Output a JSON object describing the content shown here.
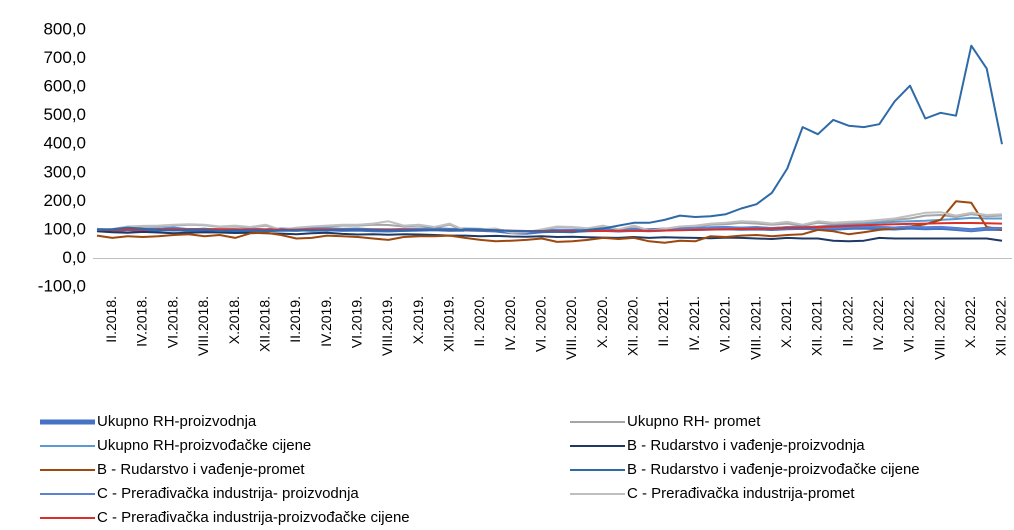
{
  "chart_data": {
    "type": "line",
    "categories": [
      null,
      "II.2018.",
      null,
      "IV.2018.",
      null,
      "VI.2018.",
      null,
      "VIII.2018.",
      null,
      "X.2018.",
      null,
      "XII.2018.",
      null,
      "II.2019.",
      null,
      "IV.2019.",
      null,
      "VI.2019.",
      null,
      "VIII.2019.",
      null,
      "X.2019.",
      null,
      "XII.2019.",
      null,
      "II. 2020.",
      null,
      "IV. 2020.",
      null,
      "VI. 2020.",
      null,
      "VIII. 2020.",
      null,
      "X. 2020.",
      null,
      "XII. 2020.",
      null,
      "II. 2021.",
      null,
      "IV. 2021.",
      null,
      "VI. 2021.",
      null,
      "VIII. 2021.",
      null,
      "X. 2021.",
      null,
      "XII. 2021.",
      null,
      "II. 2022.",
      null,
      "IV. 2022.",
      null,
      "VI. 2022.",
      null,
      "VIII. 2022.",
      null,
      "X. 2022.",
      null,
      "XII. 2022."
    ],
    "ylim": [
      -100,
      800
    ],
    "yticks": [
      {
        "value": -100,
        "label": "-100,0"
      },
      {
        "value": 0,
        "label": "0,0"
      },
      {
        "value": 100,
        "label": "100,0"
      },
      {
        "value": 200,
        "label": "200,0"
      },
      {
        "value": 300,
        "label": "300,0"
      },
      {
        "value": 400,
        "label": "400,0"
      },
      {
        "value": 500,
        "label": "500,0"
      },
      {
        "value": 600,
        "label": "600,0"
      },
      {
        "value": 700,
        "label": "700,0"
      },
      {
        "value": 800,
        "label": "800,0"
      }
    ],
    "grid": false,
    "legend": "bottom",
    "series": [
      {
        "name": "Ukupno RH-proizvodnja",
        "color": "#4472c4",
        "values": [
          100,
          98,
          102,
          100,
          101,
          103,
          99,
          100,
          98,
          97,
          100,
          99,
          101,
          100,
          103,
          102,
          100,
          101,
          99,
          98,
          100,
          101,
          102,
          100,
          101,
          100,
          98,
          92,
          90,
          95,
          97,
          96,
          99,
          100,
          98,
          100,
          99,
          101,
          104,
          103,
          105,
          106,
          104,
          105,
          103,
          106,
          107,
          105,
          104,
          107,
          108,
          106,
          105,
          108,
          106,
          107,
          103,
          99,
          104,
          103
        ]
      },
      {
        "name": "Ukupno RH- promet",
        "color": "#a5a5a5",
        "values": [
          100,
          102,
          110,
          112,
          113,
          115,
          118,
          116,
          110,
          112,
          108,
          115,
          100,
          105,
          110,
          112,
          115,
          115,
          118,
          117,
          112,
          115,
          108,
          118,
          98,
          100,
          102,
          90,
          92,
          100,
          110,
          108,
          104,
          110,
          100,
          112,
          98,
          102,
          110,
          112,
          118,
          120,
          125,
          122,
          118,
          122,
          115,
          125,
          120,
          122,
          125,
          128,
          135,
          140,
          150,
          152,
          145,
          155,
          148,
          150
        ]
      },
      {
        "name": "Ukupno RH-proizvođačke cijene",
        "color": "#5b9bd5",
        "values": [
          100,
          101,
          101,
          102,
          102,
          103,
          103,
          103,
          102,
          102,
          101,
          101,
          101,
          101,
          102,
          102,
          102,
          102,
          102,
          102,
          101,
          101,
          101,
          100,
          100,
          100,
          99,
          97,
          96,
          96,
          97,
          97,
          97,
          97,
          97,
          97,
          98,
          99,
          100,
          101,
          102,
          103,
          104,
          105,
          106,
          108,
          110,
          112,
          115,
          118,
          120,
          125,
          128,
          130,
          132,
          135,
          138,
          142,
          140,
          140
        ]
      },
      {
        "name": "B - Rudarstvo i vađenje-proizvodnja",
        "color": "#203864",
        "values": [
          95,
          92,
          90,
          93,
          91,
          88,
          90,
          92,
          91,
          89,
          90,
          88,
          87,
          85,
          88,
          90,
          86,
          84,
          85,
          83,
          85,
          84,
          82,
          80,
          80,
          78,
          79,
          77,
          76,
          78,
          75,
          76,
          74,
          73,
          72,
          75,
          72,
          74,
          73,
          72,
          71,
          73,
          72,
          70,
          68,
          72,
          70,
          70,
          62,
          60,
          62,
          72,
          70,
          70,
          70,
          70,
          70,
          70,
          70,
          62
        ]
      },
      {
        "name": "B - Rudarstvo i vađenje-promet",
        "color": "#9e480e",
        "values": [
          80,
          72,
          78,
          75,
          78,
          82,
          85,
          78,
          82,
          72,
          88,
          90,
          82,
          70,
          72,
          80,
          78,
          75,
          70,
          65,
          75,
          78,
          78,
          80,
          72,
          65,
          60,
          62,
          65,
          70,
          58,
          60,
          65,
          72,
          68,
          72,
          60,
          55,
          62,
          60,
          78,
          75,
          80,
          82,
          78,
          82,
          85,
          100,
          95,
          85,
          92,
          100,
          105,
          112,
          120,
          135,
          200,
          195,
          110,
          100
        ]
      },
      {
        "name": "B - Rudarstvo i vađenje-proizvođačke cijene",
        "color": "#2e6aa8",
        "values": [
          100,
          102,
          108,
          104,
          100,
          98,
          100,
          100,
          96,
          98,
          97,
          96,
          98,
          99,
          97,
          98,
          100,
          101,
          99,
          98,
          97,
          99,
          100,
          100,
          100,
          101,
          99,
          96,
          95,
          94,
          93,
          92,
          100,
          105,
          115,
          125,
          125,
          135,
          150,
          145,
          148,
          155,
          175,
          190,
          230,
          315,
          460,
          435,
          485,
          465,
          460,
          470,
          550,
          605,
          490,
          510,
          500,
          745,
          665,
          400
        ]
      },
      {
        "name": "C - Prerađivačka industrija- proizvodnja",
        "color": "#5a82d0",
        "values": [
          102,
          100,
          105,
          103,
          104,
          108,
          102,
          104,
          100,
          99,
          104,
          101,
          103,
          102,
          106,
          105,
          103,
          104,
          101,
          100,
          103,
          104,
          106,
          102,
          103,
          102,
          100,
          92,
          90,
          96,
          100,
          98,
          102,
          104,
          100,
          103,
          100,
          103,
          108,
          106,
          109,
          110,
          108,
          110,
          106,
          110,
          112,
          108,
          106,
          110,
          112,
          110,
          108,
          112,
          108,
          110,
          105,
          98,
          106,
          105
        ]
      },
      {
        "name": "C - Prerađivačka industrija-promet",
        "color": "#bfbfbf",
        "values": [
          100,
          103,
          112,
          114,
          115,
          118,
          120,
          118,
          112,
          115,
          110,
          118,
          100,
          108,
          112,
          115,
          118,
          118,
          122,
          130,
          115,
          118,
          110,
          122,
          98,
          102,
          105,
          90,
          92,
          102,
          112,
          110,
          106,
          115,
          102,
          115,
          98,
          104,
          112,
          115,
          122,
          125,
          130,
          128,
          122,
          128,
          118,
          130,
          125,
          128,
          130,
          135,
          140,
          150,
          160,
          162,
          150,
          160,
          152,
          155
        ]
      },
      {
        "name": "C - Prerađivačka industrija-proizvođačke cijene",
        "color": "#d9302c",
        "values": [
          100,
          100,
          101,
          101,
          102,
          102,
          102,
          102,
          102,
          102,
          101,
          101,
          101,
          101,
          101,
          101,
          101,
          101,
          101,
          101,
          100,
          100,
          100,
          100,
          100,
          100,
          99,
          97,
          96,
          96,
          96,
          96,
          96,
          96,
          97,
          97,
          97,
          98,
          99,
          100,
          101,
          102,
          103,
          104,
          105,
          107,
          108,
          110,
          112,
          114,
          116,
          118,
          120,
          121,
          122,
          123,
          124,
          124,
          123,
          122
        ]
      }
    ]
  }
}
